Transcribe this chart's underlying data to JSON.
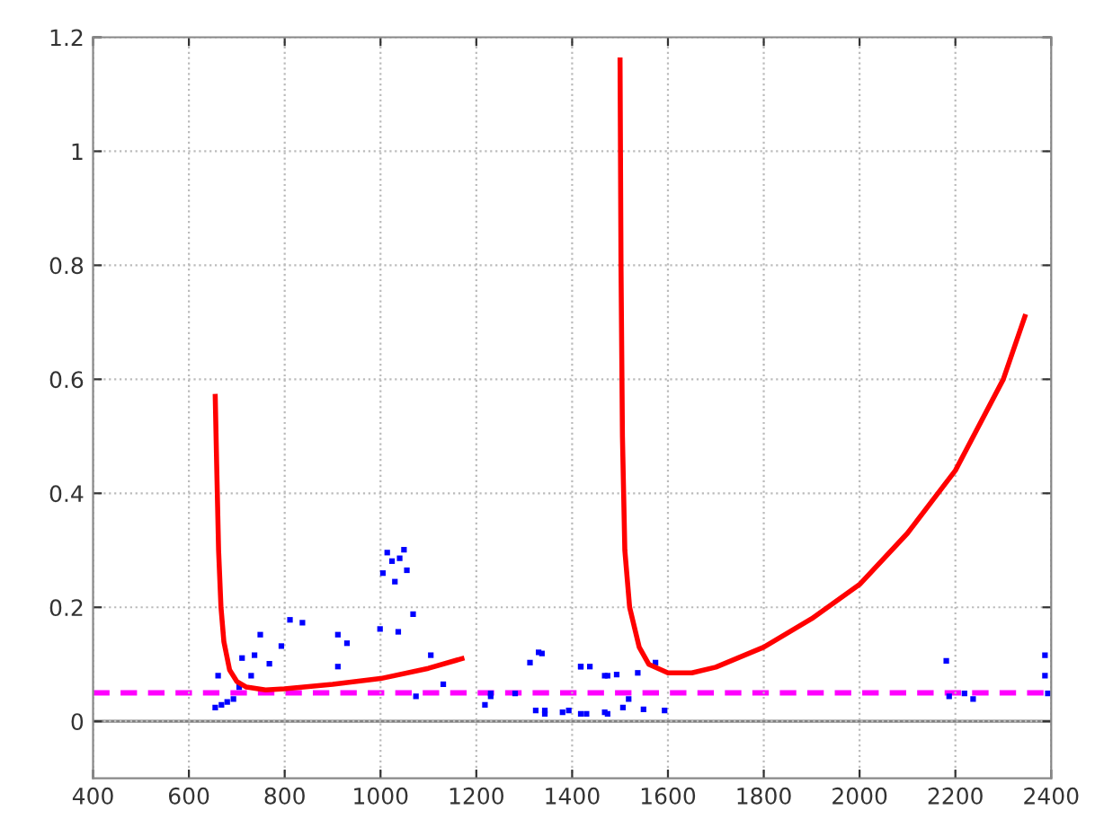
{
  "chart_data": {
    "type": "line",
    "series": [
      {
        "color": "#ff0000",
        "x": [
          655,
          658,
          662,
          667,
          673,
          685,
          700,
          720,
          760,
          800,
          900,
          1000,
          1100,
          1170
        ],
        "values": [
          0.57,
          0.45,
          0.3,
          0.2,
          0.14,
          0.09,
          0.07,
          0.06,
          0.055,
          0.057,
          0.065,
          0.075,
          0.093,
          0.11
        ]
      },
      {
        "color": "#ff0000",
        "x": [
          1500,
          1502,
          1505,
          1510,
          1520,
          1540,
          1560,
          1600,
          1650,
          1700,
          1800,
          1900,
          2000,
          2100,
          2200,
          2300,
          2345
        ],
        "values": [
          1.16,
          0.8,
          0.5,
          0.3,
          0.2,
          0.13,
          0.1,
          0.085,
          0.085,
          0.095,
          0.13,
          0.18,
          0.24,
          0.33,
          0.44,
          0.6,
          0.71
        ]
      },
      {
        "type": "scatter",
        "color": "#0000ff",
        "marker": "square",
        "x": [
          655,
          668,
          680,
          693,
          661,
          705,
          711,
          730,
          737,
          749,
          768,
          793,
          811,
          837,
          911,
          911,
          930,
          999,
          1005,
          1014,
          1024,
          1030,
          1040,
          1049,
          1055,
          1037,
          1068,
          1105,
          1131,
          1074,
          1218,
          1230,
          1281,
          1330,
          1343,
          1393,
          1418,
          1430,
          1468,
          1474,
          1312,
          1337,
          1418,
          1437,
          1474,
          1493,
          1537,
          1574,
          1324,
          1343,
          1380,
          1418,
          1468,
          1506,
          1549,
          1593,
          1518,
          1230,
          2181,
          2187,
          2219,
          2237,
          2387,
          2387,
          2393
        ],
        "values": [
          0.024,
          0.029,
          0.034,
          0.039,
          0.08,
          0.06,
          0.111,
          0.08,
          0.116,
          0.152,
          0.101,
          0.132,
          0.178,
          0.173,
          0.152,
          0.096,
          0.137,
          0.162,
          0.26,
          0.296,
          0.281,
          0.245,
          0.286,
          0.301,
          0.265,
          0.157,
          0.188,
          0.116,
          0.065,
          0.044,
          0.029,
          0.049,
          0.049,
          0.121,
          0.019,
          0.019,
          0.096,
          0.013,
          0.08,
          0.013,
          0.103,
          0.119,
          0.096,
          0.096,
          0.08,
          0.082,
          0.085,
          0.103,
          0.019,
          0.013,
          0.016,
          0.013,
          0.016,
          0.024,
          0.021,
          0.019,
          0.039,
          0.044,
          0.106,
          0.044,
          0.049,
          0.039,
          0.116,
          0.08,
          0.049
        ]
      }
    ],
    "xlim": [
      400,
      2400
    ],
    "ylim": [
      -0.1,
      1.2
    ],
    "xticks": [
      400,
      600,
      800,
      1000,
      1200,
      1400,
      1600,
      1800,
      2000,
      2200,
      2400
    ],
    "yticks": [
      0,
      0.2,
      0.4,
      0.6,
      0.8,
      1,
      1.2
    ],
    "ref_lines": [
      {
        "axis": "y",
        "value": 0,
        "color": "#808080",
        "line_style": "solid"
      },
      {
        "axis": "y",
        "value": 0.05,
        "color": "#ff00ff",
        "line_style": "dashed"
      }
    ],
    "grid": true
  }
}
